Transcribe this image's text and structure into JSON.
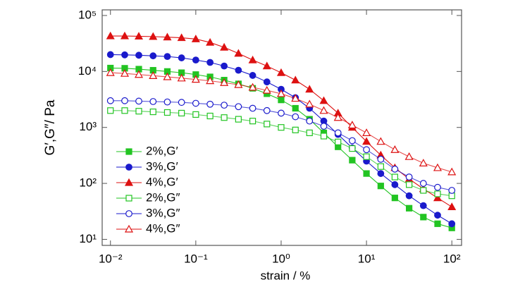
{
  "chart_data": {
    "type": "line",
    "xlabel": "strain / %",
    "ylabel": "G′,G″/ Pa",
    "xscale": "log",
    "yscale": "log",
    "xlim": [
      0.008,
      130
    ],
    "ylim": [
      7.8,
      126000
    ],
    "xticks": [
      {
        "value": 0.01,
        "label": "10⁻²"
      },
      {
        "value": 0.1,
        "label": "10⁻¹"
      },
      {
        "value": 1,
        "label": "10⁰"
      },
      {
        "value": 10,
        "label": "10¹"
      },
      {
        "value": 100,
        "label": "10²"
      }
    ],
    "yticks": [
      {
        "value": 10,
        "label": "10¹"
      },
      {
        "value": 100,
        "label": "10²"
      },
      {
        "value": 1000,
        "label": "10³"
      },
      {
        "value": 10000,
        "label": "10⁴"
      },
      {
        "value": 100000,
        "label": "10⁵"
      }
    ],
    "legend": "lower left",
    "x": [
      0.01,
      0.0147,
      0.0215,
      0.0316,
      0.0464,
      0.0681,
      0.1,
      0.147,
      0.215,
      0.316,
      0.464,
      0.681,
      1,
      1.47,
      2.15,
      3.16,
      4.64,
      6.81,
      10,
      14.7,
      21.5,
      31.6,
      46.4,
      68.1,
      100
    ],
    "series": [
      {
        "name": "2%,G′",
        "color": "#22c422",
        "marker": "square",
        "filled": true,
        "values": [
          11500,
          11400,
          11000,
          10500,
          10000,
          9500,
          8800,
          8000,
          7000,
          6000,
          5000,
          4000,
          3100,
          2200,
          1400,
          800,
          450,
          260,
          150,
          90,
          55,
          36,
          25,
          19,
          16
        ]
      },
      {
        "name": "3%,G′",
        "color": "#1a1acc",
        "marker": "circle",
        "filled": true,
        "values": [
          20000,
          19800,
          19500,
          19000,
          18500,
          17500,
          16000,
          14500,
          12500,
          10500,
          8500,
          6500,
          4800,
          3400,
          2200,
          1300,
          750,
          430,
          250,
          150,
          95,
          60,
          40,
          27,
          19
        ]
      },
      {
        "name": "4%,G′",
        "color": "#dd1111",
        "marker": "triangle",
        "filled": true,
        "values": [
          43000,
          43000,
          42500,
          42000,
          41000,
          40000,
          38000,
          33000,
          27000,
          21000,
          16000,
          12500,
          9500,
          7000,
          4800,
          3000,
          1800,
          1000,
          560,
          320,
          190,
          120,
          80,
          55,
          38
        ]
      },
      {
        "name": "2%,G″",
        "color": "#22c422",
        "marker": "square",
        "filled": false,
        "values": [
          2000,
          2000,
          1950,
          1900,
          1850,
          1800,
          1700,
          1600,
          1500,
          1400,
          1300,
          1150,
          1000,
          900,
          800,
          700,
          550,
          420,
          300,
          200,
          130,
          95,
          75,
          65,
          60
        ]
      },
      {
        "name": "3%,G″",
        "color": "#1a1acc",
        "marker": "circle",
        "filled": false,
        "values": [
          3000,
          3000,
          2950,
          2900,
          2850,
          2800,
          2700,
          2600,
          2500,
          2350,
          2200,
          2000,
          1800,
          1550,
          1300,
          1050,
          800,
          580,
          400,
          270,
          180,
          130,
          100,
          85,
          75
        ]
      },
      {
        "name": "4%,G″",
        "color": "#dd1111",
        "marker": "triangle",
        "filled": false,
        "values": [
          9500,
          9200,
          8800,
          8400,
          8000,
          7600,
          7200,
          6800,
          6300,
          5800,
          5200,
          4600,
          4000,
          3300,
          2600,
          2000,
          1500,
          1100,
          800,
          560,
          400,
          300,
          230,
          190,
          160
        ]
      }
    ]
  }
}
